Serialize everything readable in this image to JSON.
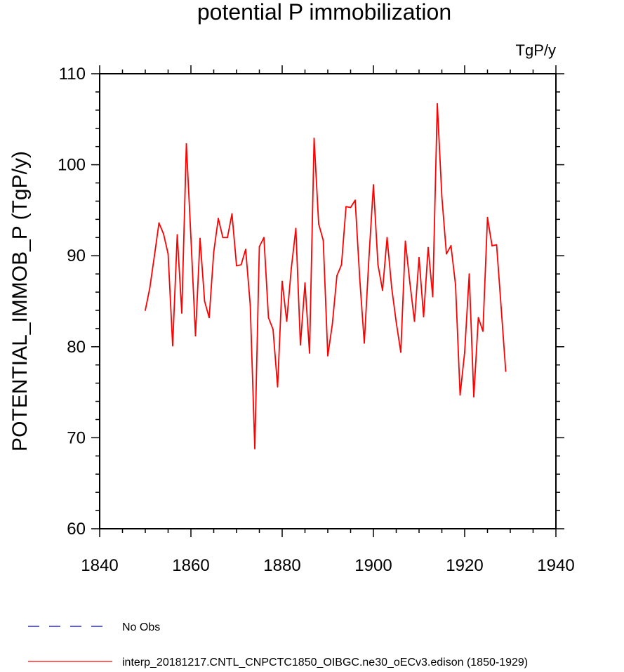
{
  "chart_data": {
    "type": "line",
    "title": "potential P immobilization",
    "units": "TgP/y",
    "xlabel": "",
    "ylabel": "POTENTIAL_IMMOB_P  (TgP/y)",
    "xlim": [
      1840,
      1940
    ],
    "ylim": [
      60,
      110
    ],
    "x_major_ticks": [
      1840,
      1860,
      1880,
      1900,
      1920,
      1940
    ],
    "x_tick_labels": [
      "1840",
      "1860",
      "1880",
      "1900",
      "1920",
      "1940"
    ],
    "y_major_ticks": [
      60,
      70,
      80,
      90,
      100,
      110
    ],
    "y_tick_labels": [
      "60",
      "70",
      "80",
      "90",
      "100",
      "110"
    ],
    "grid": false,
    "series": [
      {
        "name": "interp_20181217.CNTL_CNPCTC1850_OIBGC.ne30_oECv3.edison (1850-1929)",
        "color": "#ff0000",
        "style": "solid",
        "x": [
          1850,
          1851,
          1852,
          1853,
          1854,
          1855,
          1856,
          1857,
          1858,
          1859,
          1860,
          1861,
          1862,
          1863,
          1864,
          1865,
          1866,
          1867,
          1868,
          1869,
          1870,
          1871,
          1872,
          1873,
          1874,
          1875,
          1876,
          1877,
          1878,
          1879,
          1880,
          1881,
          1882,
          1883,
          1884,
          1885,
          1886,
          1887,
          1888,
          1889,
          1890,
          1891,
          1892,
          1893,
          1894,
          1895,
          1896,
          1897,
          1898,
          1899,
          1900,
          1901,
          1902,
          1903,
          1904,
          1905,
          1906,
          1907,
          1908,
          1909,
          1910,
          1911,
          1912,
          1913,
          1914,
          1915,
          1916,
          1917,
          1918,
          1919,
          1920,
          1921,
          1922,
          1923,
          1924,
          1925,
          1926,
          1927,
          1928,
          1929
        ],
        "values": [
          84.0,
          86.5,
          90.0,
          93.6,
          92.4,
          90.2,
          80.1,
          92.3,
          83.7,
          102.3,
          92.0,
          81.2,
          91.9,
          85.0,
          83.2,
          90.4,
          94.1,
          92.0,
          92.0,
          94.6,
          88.9,
          89.0,
          90.7,
          84.6,
          68.8,
          91.0,
          92.0,
          83.2,
          81.9,
          75.6,
          87.2,
          82.8,
          88.6,
          93.0,
          80.2,
          87.0,
          79.3,
          102.9,
          93.5,
          91.7,
          79.0,
          82.5,
          87.8,
          89.0,
          95.4,
          95.3,
          96.1,
          87.5,
          80.4,
          89.6,
          97.8,
          89.0,
          86.2,
          92.0,
          86.5,
          82.7,
          79.4,
          91.6,
          87.0,
          82.8,
          89.8,
          83.3,
          90.9,
          85.5,
          106.7,
          96.5,
          90.2,
          91.1,
          86.8,
          74.7,
          79.4,
          88.0,
          74.5,
          83.2,
          81.7,
          94.2,
          91.1,
          91.2,
          84.3,
          77.3
        ]
      }
    ],
    "legend": {
      "placement": "bottom-left",
      "entries": [
        {
          "label": "No Obs",
          "color": "#0000cc",
          "style": "dashed"
        },
        {
          "label": "interp_20181217.CNTL_CNPCTC1850_OIBGC.ne30_oECv3.edison (1850-1929)",
          "color": "#ff0000",
          "style": "solid"
        }
      ]
    }
  }
}
